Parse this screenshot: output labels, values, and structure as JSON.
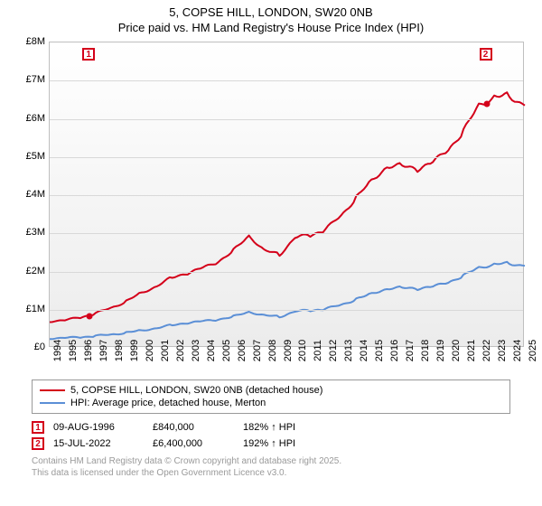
{
  "title": "5, COPSE HILL, LONDON, SW20 0NB",
  "subtitle": "Price paid vs. HM Land Registry's House Price Index (HPI)",
  "chart": {
    "type": "line",
    "background_gradient": [
      "#ffffff",
      "#ececec"
    ],
    "grid_color": "#d8d8d8",
    "border_color": "#bfbfbf",
    "x_years": [
      1994,
      1995,
      1996,
      1997,
      1998,
      1999,
      2000,
      2001,
      2002,
      2003,
      2004,
      2005,
      2006,
      2007,
      2008,
      2009,
      2010,
      2011,
      2012,
      2013,
      2014,
      2015,
      2016,
      2017,
      2018,
      2019,
      2020,
      2021,
      2022,
      2023,
      2024,
      2025
    ],
    "y_ticks": [
      0,
      1,
      2,
      3,
      4,
      5,
      6,
      7,
      8
    ],
    "y_tick_labels": [
      "£0",
      "£1M",
      "£2M",
      "£3M",
      "£4M",
      "£5M",
      "£6M",
      "£7M",
      "£8M"
    ],
    "ylim": [
      0,
      8
    ],
    "series": [
      {
        "name": "5, COPSE HILL, LONDON, SW20 0NB (detached house)",
        "color": "#d4001a",
        "width": 2,
        "values_by_year": {
          "1994": 0.7,
          "1995": 0.72,
          "1996": 0.8,
          "1997": 0.9,
          "1998": 1.05,
          "1999": 1.22,
          "2000": 1.45,
          "2001": 1.62,
          "2002": 1.85,
          "2003": 1.95,
          "2004": 2.1,
          "2005": 2.25,
          "2006": 2.55,
          "2007": 2.95,
          "2008": 2.55,
          "2009": 2.45,
          "2010": 2.88,
          "2011": 2.95,
          "2012": 3.1,
          "2013": 3.45,
          "2014": 3.95,
          "2015": 4.38,
          "2016": 4.75,
          "2017": 4.78,
          "2018": 4.68,
          "2019": 4.85,
          "2020": 5.2,
          "2021": 5.65,
          "2022": 6.4,
          "2023": 6.55,
          "2024": 6.62,
          "2025": 6.35
        }
      },
      {
        "name": "HPI: Average price, detached house, Merton",
        "color": "#5b8fd6",
        "width": 2,
        "values_by_year": {
          "1994": 0.25,
          "1995": 0.26,
          "1996": 0.28,
          "1997": 0.31,
          "1998": 0.35,
          "1999": 0.4,
          "2000": 0.46,
          "2001": 0.52,
          "2002": 0.6,
          "2003": 0.65,
          "2004": 0.7,
          "2005": 0.74,
          "2006": 0.82,
          "2007": 0.95,
          "2008": 0.85,
          "2009": 0.82,
          "2010": 0.95,
          "2011": 0.98,
          "2012": 1.02,
          "2013": 1.12,
          "2014": 1.28,
          "2015": 1.42,
          "2016": 1.55,
          "2017": 1.58,
          "2018": 1.55,
          "2019": 1.6,
          "2020": 1.72,
          "2021": 1.88,
          "2022": 2.12,
          "2023": 2.18,
          "2024": 2.22,
          "2025": 2.15
        }
      }
    ],
    "markers": [
      {
        "label": "1",
        "year": 1996.6,
        "value": 0.84,
        "color": "#d4001a"
      },
      {
        "label": "2",
        "year": 2022.5,
        "value": 6.4,
        "color": "#d4001a"
      }
    ]
  },
  "legend": {
    "series_labels": [
      "5, COPSE HILL, LONDON, SW20 0NB (detached house)",
      "HPI: Average price, detached house, Merton"
    ]
  },
  "data_points": [
    {
      "marker": "1",
      "color": "#d4001a",
      "date": "09-AUG-1996",
      "price": "£840,000",
      "pct": "182% ↑ HPI"
    },
    {
      "marker": "2",
      "color": "#d4001a",
      "date": "15-JUL-2022",
      "price": "£6,400,000",
      "pct": "192% ↑ HPI"
    }
  ],
  "attribution": {
    "line1": "Contains HM Land Registry data © Crown copyright and database right 2025.",
    "line2": "This data is licensed under the Open Government Licence v3.0."
  }
}
